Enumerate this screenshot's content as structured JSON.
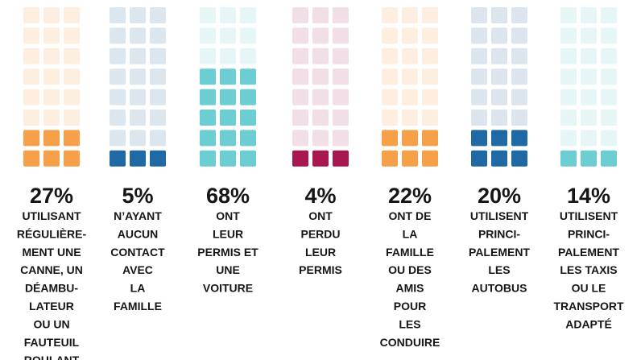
{
  "chart_data": {
    "type": "waffle",
    "values": [
      27,
      5,
      68,
      4,
      22,
      20,
      14
    ],
    "value_labels": [
      "27%",
      "5%",
      "68%",
      "4%",
      "22%",
      "20%",
      "14%"
    ],
    "categories": [
      [
        "UTILISANT",
        "RÉGULIÈRE-",
        "MENT UNE",
        "CANNE, UN",
        "DÉAMBU-",
        "LATEUR",
        "OU UN",
        "FAUTEUIL",
        "ROULANT"
      ],
      [
        "N’AYANT",
        "AUCUN",
        "CONTACT",
        "AVEC",
        "LA",
        "FAMILLE"
      ],
      [
        "ONT",
        "LEUR",
        "PERMIS ET",
        "UNE",
        "VOITURE"
      ],
      [
        "ONT",
        "PERDU",
        "LEUR",
        "PERMIS"
      ],
      [
        "ONT DE",
        "LA",
        "FAMILLE",
        "OU DES",
        "AMIS",
        "POUR",
        "LES",
        "CONDUIRE"
      ],
      [
        "UTILISENT",
        "PRINCI-",
        "PALEMENT",
        "LES",
        "AUTOBUS"
      ],
      [
        "UTILISENT",
        "PRINCI-",
        "PALEMENT",
        "LES TAXIS",
        "OU LE",
        "TRANSPORT",
        "ADAPTÉ"
      ]
    ],
    "colors": [
      "#f7a04a",
      "#1f6aa5",
      "#6ccdd2",
      "#a8174f",
      "#f7a04a",
      "#1f6aa5",
      "#6ccdd2"
    ],
    "background_colors": [
      "#fdeee0",
      "#dce6ef",
      "#e6f6f7",
      "#f1dee7",
      "#fdeee0",
      "#dce4ed",
      "#e6f6f7"
    ]
  }
}
